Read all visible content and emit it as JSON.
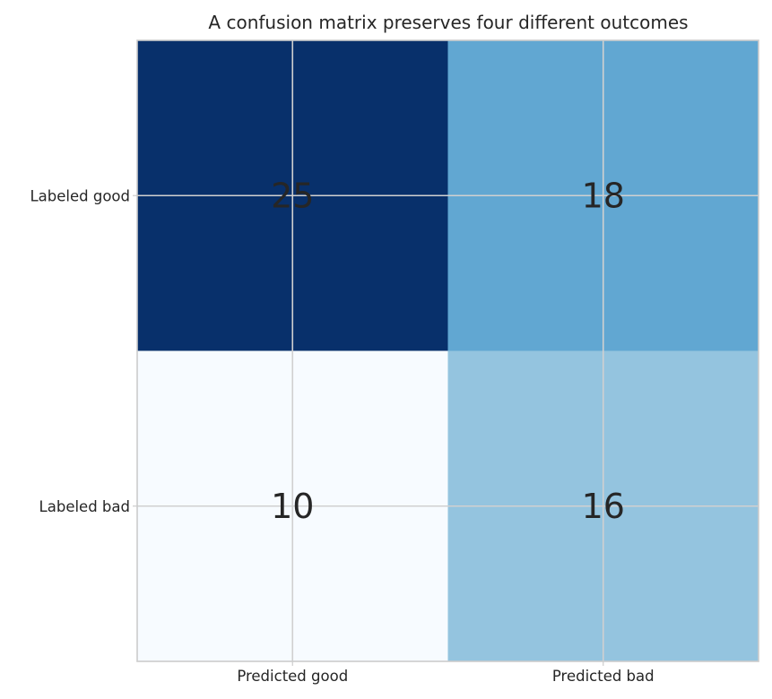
{
  "chart_data": {
    "type": "heatmap",
    "title": "A confusion matrix preserves four different outcomes",
    "xlabel": "",
    "ylabel": "",
    "x_categories": [
      "Predicted good",
      "Predicted bad"
    ],
    "y_categories": [
      "Labeled good",
      "Labeled bad"
    ],
    "values": [
      [
        25,
        18
      ],
      [
        10,
        16
      ]
    ],
    "colormap": "Blues",
    "cell_colors": [
      [
        "#08306b",
        "#61a7d2"
      ],
      [
        "#f7fbff",
        "#94c4df"
      ]
    ],
    "grid": true,
    "legend": "none"
  }
}
